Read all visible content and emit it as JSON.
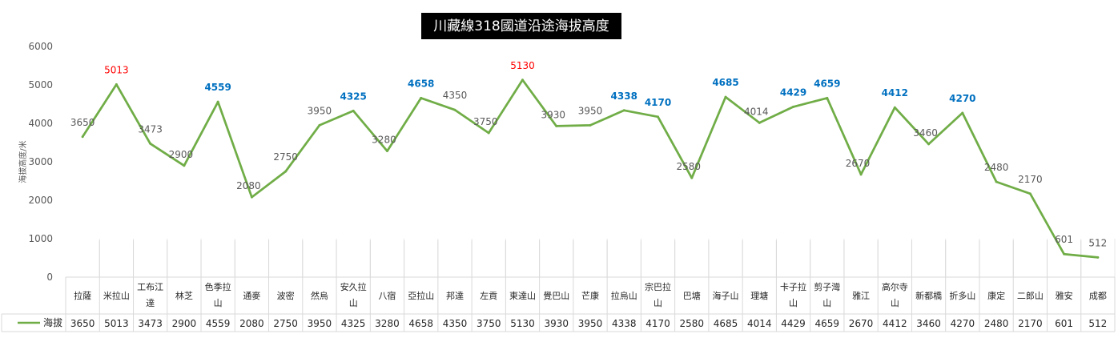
{
  "chart_data": {
    "type": "line",
    "title": "川藏線318國道沿途海拔高度",
    "ylabel": "海拔高度/米",
    "ylim": [
      0,
      6000
    ],
    "yticks": [
      "0",
      "1000",
      "2000",
      "3000",
      "4000",
      "5000",
      "6000"
    ],
    "grid": "vertical category lines",
    "legend": "table-left",
    "categories": [
      "拉薩",
      "米拉山",
      "工布江達",
      "林芝",
      "色季拉山",
      "通麥",
      "波密",
      "然烏",
      "安久拉山",
      "八宿",
      "亞拉山",
      "邦達",
      "左貢",
      "東達山",
      "覺巴山",
      "芒康",
      "拉烏山",
      "宗巴拉山",
      "巴塘",
      "海子山",
      "理塘",
      "卡子拉山",
      "剪子灣山",
      "雅江",
      "高尔寺山",
      "新都橋",
      "折多山",
      "康定",
      "二郎山",
      "雅安",
      "成都"
    ],
    "category_lines": [
      [
        "拉薩"
      ],
      [
        "米拉山"
      ],
      [
        "工布江",
        "達"
      ],
      [
        "林芝"
      ],
      [
        "色季拉",
        "山"
      ],
      [
        "通麥"
      ],
      [
        "波密"
      ],
      [
        "然烏"
      ],
      [
        "安久拉",
        "山"
      ],
      [
        "八宿"
      ],
      [
        "亞拉山"
      ],
      [
        "邦達"
      ],
      [
        "左貢"
      ],
      [
        "東達山"
      ],
      [
        "覺巴山"
      ],
      [
        "芒康"
      ],
      [
        "拉烏山"
      ],
      [
        "宗巴拉",
        "山"
      ],
      [
        "巴塘"
      ],
      [
        "海子山"
      ],
      [
        "理塘"
      ],
      [
        "卡子拉",
        "山"
      ],
      [
        "剪子灣",
        "山"
      ],
      [
        "雅江"
      ],
      [
        "高尔寺",
        "山"
      ],
      [
        "新都橋"
      ],
      [
        "折多山"
      ],
      [
        "康定"
      ],
      [
        "二郎山"
      ],
      [
        "雅安"
      ],
      [
        "成都"
      ]
    ],
    "series": [
      {
        "name": "海拔",
        "color": "#70ad47",
        "values": [
          3650,
          5013,
          3473,
          2900,
          4559,
          2080,
          2750,
          3950,
          4325,
          3280,
          4658,
          4350,
          3750,
          5130,
          3930,
          3950,
          4338,
          4170,
          2580,
          4685,
          4014,
          4429,
          4659,
          2670,
          4412,
          3460,
          4270,
          2480,
          2170,
          601,
          512
        ],
        "label_styles": [
          "normal",
          "red",
          "normal",
          "normal",
          "blue",
          "normal",
          "normal",
          "normal",
          "blue",
          "normal",
          "blue",
          "normal",
          "normal",
          "red",
          "normal",
          "normal",
          "blue",
          "blue",
          "normal",
          "blue",
          "normal",
          "blue",
          "blue",
          "normal",
          "blue",
          "normal",
          "blue",
          "normal",
          "normal",
          "normal",
          "normal"
        ]
      }
    ]
  }
}
